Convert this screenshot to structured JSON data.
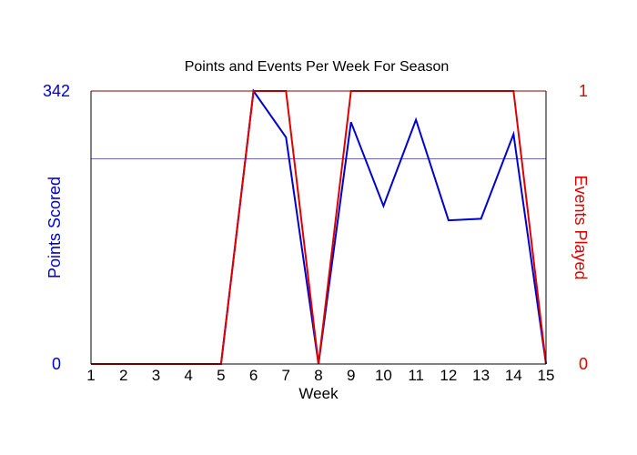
{
  "chart_data": {
    "type": "line",
    "title": "Points and Events Per Week For Season",
    "xlabel": "Week",
    "ylabel_left": "Points Scored",
    "ylabel_right": "Events Played",
    "x": [
      1,
      2,
      3,
      4,
      5,
      6,
      7,
      8,
      9,
      10,
      11,
      12,
      13,
      14,
      15
    ],
    "xlim": [
      1,
      15
    ],
    "left_axis": {
      "min": 0,
      "max": 342,
      "tick_labels": [
        "0",
        "342"
      ],
      "reference_line": 257
    },
    "right_axis": {
      "min": 0,
      "max": 1,
      "tick_labels": [
        "0",
        "1"
      ]
    },
    "series": [
      {
        "axis": "left",
        "color": "#0000cc",
        "values": [
          0,
          0,
          0,
          0,
          0,
          342,
          284,
          0,
          303,
          198,
          306,
          180,
          182,
          288,
          0
        ]
      },
      {
        "axis": "right",
        "color": "#dd0000",
        "values": [
          0,
          0,
          0,
          0,
          0,
          1,
          1,
          0,
          1,
          1,
          1,
          1,
          1,
          1,
          0
        ]
      }
    ],
    "colors": {
      "left_axis": "#0000cc",
      "right_axis": "#dd0000",
      "frame": "#000000"
    }
  }
}
